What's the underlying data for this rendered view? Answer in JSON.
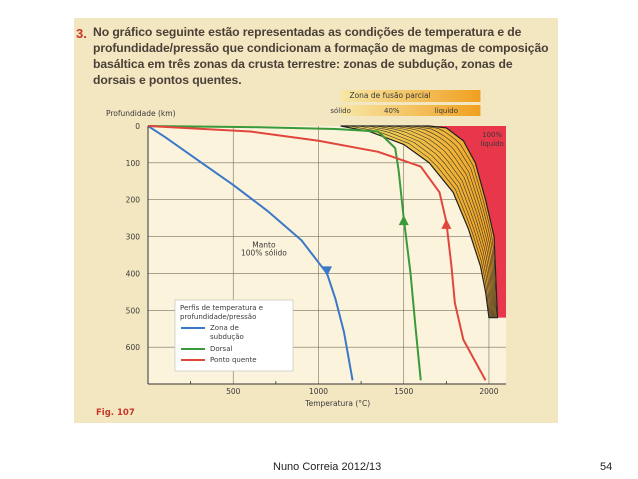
{
  "question": {
    "number": "3.",
    "text": "No gráfico seguinte estão representadas as condições de temperatura e de profundidade/pressão que condicionam a formação de magmas de composição basáltica em três zonas da crusta terrestre: zonas de subdução, zonas de dorsais e pontos quentes."
  },
  "figure_label": "Fig. 107",
  "footer": {
    "author": "Nuno Correia 2012/13",
    "page": "54"
  },
  "colors": {
    "subduction": "#3c78c8",
    "ridge": "#3a9a3a",
    "hotspot": "#e0463c",
    "liquid_zone": "#e8364a",
    "melt_start": "#f2df6a",
    "melt_end": "#f0a020",
    "grid": "#7a7060"
  },
  "chart_data": {
    "type": "line",
    "xlabel": "Temperatura (°C)",
    "ylabel": "Profundidade (km)",
    "xlim": [
      0,
      2100
    ],
    "ylim": [
      0,
      700
    ],
    "x_ticks": [
      500,
      1000,
      1500,
      2000
    ],
    "y_ticks": [
      0,
      100,
      200,
      300,
      400,
      500,
      600
    ],
    "y_axis_inverted": true,
    "grid": true,
    "series": [
      {
        "name": "Zona de subdução",
        "color": "#3c78c8",
        "arrow": "down",
        "x": [
          0,
          100,
          300,
          500,
          700,
          900,
          1050,
          1100,
          1150,
          1200
        ],
        "y": [
          0,
          30,
          95,
          160,
          230,
          310,
          400,
          470,
          560,
          690
        ]
      },
      {
        "name": "Dorsal",
        "color": "#3a9a3a",
        "arrow": "up",
        "x": [
          0,
          600,
          1100,
          1350,
          1450,
          1470,
          1500,
          1540,
          1570,
          1600
        ],
        "y": [
          0,
          3,
          8,
          15,
          60,
          120,
          250,
          400,
          550,
          690
        ]
      },
      {
        "name": "Ponto quente",
        "color": "#e0463c",
        "arrow": "up",
        "x": [
          0,
          600,
          1000,
          1350,
          1600,
          1710,
          1750,
          1780,
          1800,
          1850,
          1980
        ],
        "y": [
          0,
          15,
          40,
          70,
          110,
          180,
          260,
          380,
          480,
          580,
          690
        ]
      }
    ],
    "annotations": {
      "melt_zone_title": "Zona de fusão parcial",
      "melt_zone_scale": [
        "sólido",
        "40%",
        "líquido"
      ],
      "liquid_label": [
        "100%",
        "líquido"
      ],
      "mantle_label": [
        "Manto",
        "100% sólido"
      ]
    },
    "melt_zone": {
      "solidus": {
        "x": [
          1130,
          1300,
          1500,
          1650,
          1790,
          1880,
          1950,
          1980,
          2000
        ],
        "y": [
          0,
          15,
          50,
          100,
          180,
          280,
          380,
          450,
          520
        ]
      },
      "liquidus": {
        "x": [
          1650,
          1750,
          1850,
          1920,
          1980,
          2030,
          2050
        ],
        "y": [
          0,
          5,
          40,
          100,
          200,
          300,
          520
        ]
      }
    },
    "legend": {
      "title": [
        "Perfis de temperatura e",
        "profundidade/pressão"
      ],
      "entries": [
        {
          "label": [
            "Zona de",
            "subdução"
          ],
          "color": "#3c78c8"
        },
        {
          "label": [
            "Dorsal"
          ],
          "color": "#3a9a3a"
        },
        {
          "label": [
            "Ponto quente"
          ],
          "color": "#e0463c"
        }
      ],
      "position": "bottom-left"
    }
  }
}
